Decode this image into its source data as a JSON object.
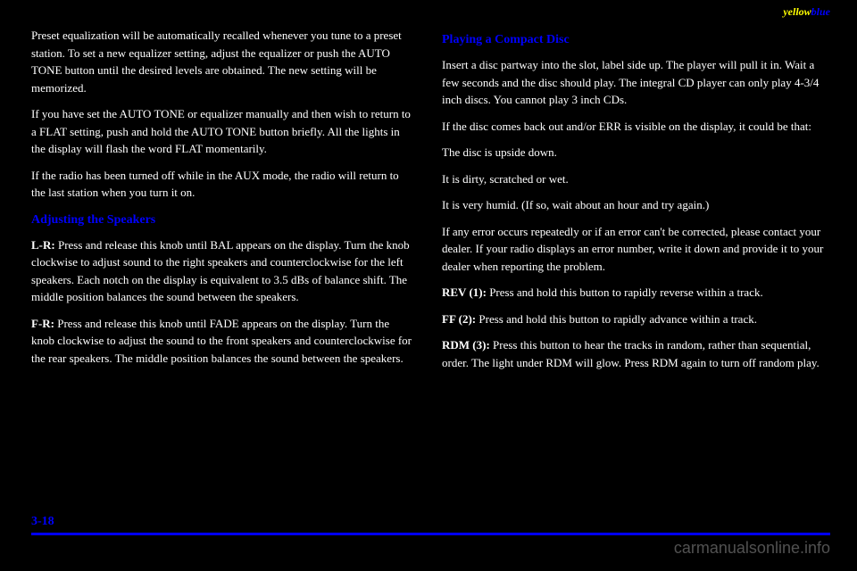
{
  "header": {
    "yellow": "yellow",
    "blue": "blue"
  },
  "leftColumn": {
    "p1": "Preset equalization will be automatically recalled whenever you tune to a preset station. To set a new equalizer setting, adjust the equalizer or push the AUTO TONE button until the desired levels are obtained. The new setting will be memorized.",
    "p2": "If you have set the AUTO TONE or equalizer manually and then wish to return to a FLAT setting, push and hold the AUTO TONE button briefly. All the lights in the display will flash the word FLAT momentarily.",
    "p3": "If the radio has been turned off while in the AUX mode, the radio will return to the last station when you turn it on.",
    "heading": "Adjusting the Speakers",
    "p4_label": "L-R:",
    "p4": " Press and release this knob until BAL appears on the display. Turn the knob clockwise to adjust sound to the right speakers and counterclockwise for the left speakers. Each notch on the display is equivalent to 3.5 dBs of balance shift. The middle position balances the sound between the speakers.",
    "p5_label": "F-R:",
    "p5": " Press and release this knob until FADE appears on the display. Turn the knob clockwise to adjust the sound to the front speakers and counterclockwise for the rear speakers. The middle position balances the sound between the speakers."
  },
  "rightColumn": {
    "heading": "Playing a Compact Disc",
    "p1": "Insert a disc partway into the slot, label side up. The player will pull it in. Wait a few seconds and the disc should play. The integral CD player can only play 4-3/4 inch discs. You cannot play 3 inch CDs.",
    "p2": "If the disc comes back out and/or ERR is visible on the display, it could be that:",
    "li1": "The disc is upside down.",
    "li2": "It is dirty, scratched or wet.",
    "li3": "It is very humid. (If so, wait about an hour and try again.)",
    "p3_pre": "If any error occurs repeatedly or if an error can't be corrected, please contact your dealer. If your radio displays an error number, write it down and provide it to your ",
    "p3_post": "dealer when reporting the problem.",
    "p4_label": "REV (1):",
    "p4": " Press and hold this button to rapidly reverse within a track.",
    "p5_label": "FF (2):",
    "p5": " Press and hold this button to rapidly advance within a track.",
    "p6_label": "RDM (3):",
    "p6": " Press this button to hear the tracks in random, rather than sequential, order. The light under RDM will glow. Press RDM again to turn off random play."
  },
  "footer": {
    "pageNumber": "3-18"
  },
  "watermark": "carmanualsonline.info"
}
